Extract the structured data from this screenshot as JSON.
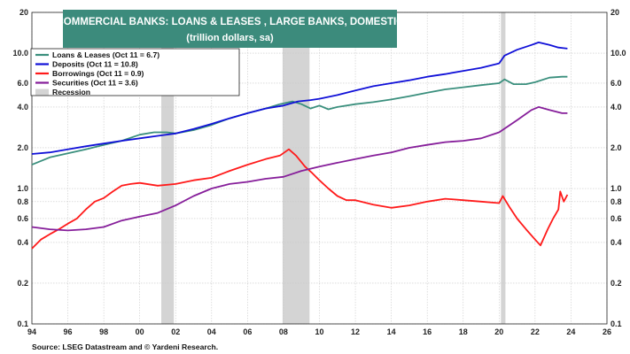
{
  "chart_data": {
    "type": "line",
    "title": "COMMERCIAL BANKS: LOANS & LEASES , LARGE BANKS, DOMESTIC",
    "subtitle": "(trillion dollars, sa)",
    "title_box_color": "#3c8b7c",
    "source": "Source: LSEG Datastream and © Yardeni Research.",
    "y_scale": "log",
    "ylim": [
      0.1,
      20
    ],
    "xlim": [
      1994,
      2026
    ],
    "x_ticks": [
      "94",
      "96",
      "98",
      "00",
      "02",
      "04",
      "06",
      "08",
      "10",
      "12",
      "14",
      "16",
      "18",
      "20",
      "22",
      "24",
      "26"
    ],
    "y_ticks": [
      "0.1",
      "0.2",
      "0.4",
      "0.6",
      "0.8",
      "1.0",
      "2.0",
      "4.0",
      "6.0",
      "10.0",
      "20"
    ],
    "grid": true,
    "legend_position": "top-left",
    "recessions": [
      [
        2001.2,
        2001.9
      ],
      [
        2007.95,
        2009.45
      ],
      [
        2020.1,
        2020.35
      ]
    ],
    "recession_label": "Recession",
    "recession_color": "#d4d4d4",
    "series": [
      {
        "name": "Loans & Leases (Oct 11 = 6.7)",
        "color": "#3a8f7d",
        "points": [
          [
            1994.0,
            1.5
          ],
          [
            1995.0,
            1.7
          ],
          [
            1996.0,
            1.82
          ],
          [
            1997.0,
            1.95
          ],
          [
            1998.0,
            2.1
          ],
          [
            1999.0,
            2.25
          ],
          [
            2000.0,
            2.5
          ],
          [
            2000.8,
            2.6
          ],
          [
            2001.5,
            2.6
          ],
          [
            2002.0,
            2.55
          ],
          [
            2003.0,
            2.7
          ],
          [
            2004.0,
            2.95
          ],
          [
            2005.0,
            3.3
          ],
          [
            2006.0,
            3.6
          ],
          [
            2007.0,
            3.9
          ],
          [
            2007.8,
            4.2
          ],
          [
            2008.5,
            4.4
          ],
          [
            2009.0,
            4.2
          ],
          [
            2009.5,
            3.9
          ],
          [
            2010.0,
            4.1
          ],
          [
            2010.5,
            3.85
          ],
          [
            2011.0,
            4.0
          ],
          [
            2012.0,
            4.2
          ],
          [
            2013.0,
            4.35
          ],
          [
            2014.0,
            4.55
          ],
          [
            2015.0,
            4.8
          ],
          [
            2016.0,
            5.1
          ],
          [
            2017.0,
            5.4
          ],
          [
            2018.0,
            5.6
          ],
          [
            2019.0,
            5.8
          ],
          [
            2020.0,
            6.0
          ],
          [
            2020.3,
            6.4
          ],
          [
            2020.8,
            5.9
          ],
          [
            2021.5,
            5.9
          ],
          [
            2022.0,
            6.1
          ],
          [
            2022.8,
            6.6
          ],
          [
            2023.5,
            6.7
          ],
          [
            2023.8,
            6.7
          ]
        ]
      },
      {
        "name": "Deposits (Oct 11 = 10.8)",
        "color": "#1010d8",
        "points": [
          [
            1994.0,
            1.8
          ],
          [
            1995.0,
            1.85
          ],
          [
            1996.0,
            1.95
          ],
          [
            1997.0,
            2.05
          ],
          [
            1998.0,
            2.15
          ],
          [
            1999.0,
            2.25
          ],
          [
            2000.0,
            2.35
          ],
          [
            2001.0,
            2.45
          ],
          [
            2002.0,
            2.55
          ],
          [
            2003.0,
            2.75
          ],
          [
            2004.0,
            3.0
          ],
          [
            2005.0,
            3.3
          ],
          [
            2006.0,
            3.6
          ],
          [
            2007.0,
            3.9
          ],
          [
            2008.0,
            4.1
          ],
          [
            2008.8,
            4.4
          ],
          [
            2009.5,
            4.5
          ],
          [
            2010.0,
            4.6
          ],
          [
            2011.0,
            4.9
          ],
          [
            2012.0,
            5.3
          ],
          [
            2013.0,
            5.7
          ],
          [
            2014.0,
            6.0
          ],
          [
            2015.0,
            6.3
          ],
          [
            2016.0,
            6.7
          ],
          [
            2017.0,
            7.0
          ],
          [
            2018.0,
            7.4
          ],
          [
            2019.0,
            7.8
          ],
          [
            2020.0,
            8.4
          ],
          [
            2020.3,
            9.6
          ],
          [
            2021.0,
            10.6
          ],
          [
            2021.8,
            11.5
          ],
          [
            2022.2,
            12.0
          ],
          [
            2022.8,
            11.5
          ],
          [
            2023.3,
            11.0
          ],
          [
            2023.8,
            10.8
          ]
        ]
      },
      {
        "name": "Borrowings (Oct 11 = 0.9)",
        "color": "#ff1a1a",
        "points": [
          [
            1994.0,
            0.36
          ],
          [
            1994.5,
            0.42
          ],
          [
            1995.0,
            0.46
          ],
          [
            1995.5,
            0.5
          ],
          [
            1996.0,
            0.55
          ],
          [
            1996.5,
            0.6
          ],
          [
            1997.0,
            0.7
          ],
          [
            1997.5,
            0.8
          ],
          [
            1998.0,
            0.85
          ],
          [
            1998.5,
            0.95
          ],
          [
            1999.0,
            1.05
          ],
          [
            1999.5,
            1.08
          ],
          [
            2000.0,
            1.1
          ],
          [
            2001.0,
            1.05
          ],
          [
            2002.0,
            1.08
          ],
          [
            2003.0,
            1.15
          ],
          [
            2004.0,
            1.2
          ],
          [
            2005.0,
            1.35
          ],
          [
            2006.0,
            1.5
          ],
          [
            2007.0,
            1.65
          ],
          [
            2007.8,
            1.75
          ],
          [
            2008.3,
            1.95
          ],
          [
            2008.7,
            1.75
          ],
          [
            2009.2,
            1.45
          ],
          [
            2009.6,
            1.3
          ],
          [
            2010.0,
            1.15
          ],
          [
            2010.5,
            1.0
          ],
          [
            2011.0,
            0.88
          ],
          [
            2011.5,
            0.82
          ],
          [
            2012.0,
            0.82
          ],
          [
            2013.0,
            0.76
          ],
          [
            2014.0,
            0.72
          ],
          [
            2015.0,
            0.75
          ],
          [
            2016.0,
            0.8
          ],
          [
            2017.0,
            0.84
          ],
          [
            2018.0,
            0.82
          ],
          [
            2019.0,
            0.8
          ],
          [
            2020.0,
            0.78
          ],
          [
            2020.2,
            0.88
          ],
          [
            2020.6,
            0.72
          ],
          [
            2021.0,
            0.6
          ],
          [
            2021.5,
            0.5
          ],
          [
            2022.0,
            0.42
          ],
          [
            2022.3,
            0.38
          ],
          [
            2022.7,
            0.5
          ],
          [
            2023.0,
            0.6
          ],
          [
            2023.3,
            0.7
          ],
          [
            2023.4,
            0.95
          ],
          [
            2023.6,
            0.8
          ],
          [
            2023.8,
            0.9
          ]
        ]
      },
      {
        "name": "Securities (Oct 11 = 3.6)",
        "color": "#861e9a",
        "points": [
          [
            1994.0,
            0.52
          ],
          [
            1995.0,
            0.5
          ],
          [
            1996.0,
            0.49
          ],
          [
            1997.0,
            0.5
          ],
          [
            1998.0,
            0.52
          ],
          [
            1999.0,
            0.58
          ],
          [
            2000.0,
            0.62
          ],
          [
            2001.0,
            0.66
          ],
          [
            2002.0,
            0.75
          ],
          [
            2003.0,
            0.88
          ],
          [
            2004.0,
            1.0
          ],
          [
            2005.0,
            1.08
          ],
          [
            2006.0,
            1.12
          ],
          [
            2007.0,
            1.18
          ],
          [
            2008.0,
            1.22
          ],
          [
            2009.0,
            1.35
          ],
          [
            2010.0,
            1.45
          ],
          [
            2011.0,
            1.55
          ],
          [
            2012.0,
            1.65
          ],
          [
            2013.0,
            1.75
          ],
          [
            2014.0,
            1.85
          ],
          [
            2015.0,
            2.0
          ],
          [
            2016.0,
            2.1
          ],
          [
            2017.0,
            2.2
          ],
          [
            2018.0,
            2.25
          ],
          [
            2019.0,
            2.35
          ],
          [
            2020.0,
            2.6
          ],
          [
            2021.0,
            3.2
          ],
          [
            2021.8,
            3.8
          ],
          [
            2022.2,
            4.0
          ],
          [
            2022.8,
            3.8
          ],
          [
            2023.5,
            3.6
          ],
          [
            2023.8,
            3.6
          ]
        ]
      }
    ]
  }
}
